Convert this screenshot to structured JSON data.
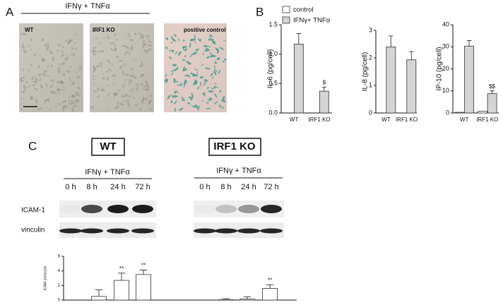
{
  "figure": {
    "panel_labels": [
      "A",
      "B",
      "C"
    ],
    "panel_a": {
      "treatment": "IFNγ + TNFα",
      "images": [
        "WT",
        "IRF1 KO",
        "positive control"
      ]
    },
    "panel_c": {
      "genotypes": [
        "WT",
        "IRF1 KO"
      ],
      "treatment_labels": [
        "IFNγ + TNFα",
        "IFNγ + TNFα"
      ],
      "timepoints": [
        [
          "0 h",
          "8 h",
          "24 h",
          "72 h"
        ],
        [
          "0 h",
          "8 h",
          "24 h",
          "72 h"
        ]
      ],
      "blot_rows": [
        "ICAM-1",
        "vinculin"
      ]
    }
  },
  "chart_data": [
    {
      "type": "bar",
      "y_label": "IL-6  (pg/cell)",
      "categories": [
        "WT",
        "IRF1 KO"
      ],
      "series": [
        {
          "name": "control",
          "color": "#ffffff",
          "values": [
            0,
            0
          ]
        },
        {
          "name": "IFNγ+ TNFα",
          "color": "#d4d4d4",
          "values": [
            1.17,
            0.37
          ],
          "errors": [
            0.18,
            0.07
          ],
          "annotations": [
            null,
            "$"
          ]
        }
      ],
      "ylim": [
        0,
        1.5
      ],
      "yticks": [
        {
          "value": 0,
          "label": "0.0"
        },
        {
          "value": 0.5,
          "label": "0.5"
        },
        {
          "value": 1,
          "label": "1.0"
        },
        {
          "value": 1.5,
          "label": "1.5"
        }
      ],
      "legend": "top"
    },
    {
      "type": "bar",
      "y_label": "IL-8  (pg/cell)",
      "categories": [
        "WT",
        "IRF1 KO"
      ],
      "series": [
        {
          "color": "#ffffff",
          "values": [
            0,
            0
          ]
        },
        {
          "color": "#d4d4d4",
          "values": [
            2.4,
            1.93
          ],
          "errors": [
            0.4,
            0.3
          ]
        }
      ],
      "ylim": [
        0,
        3
      ],
      "yticks": [
        0,
        1,
        2,
        3
      ]
    },
    {
      "type": "bar",
      "y_label": "IP-10  (pg/cell)",
      "categories": [
        "WT",
        "IRF1 KO"
      ],
      "series": [
        {
          "color": "#ffffff",
          "values": [
            0.3,
            0.8
          ]
        },
        {
          "color": "#d4d4d4",
          "values": [
            30.3,
            8.8
          ],
          "errors": [
            2.5,
            1.2
          ],
          "annotations": [
            null,
            "$$"
          ]
        }
      ],
      "ylim": [
        0,
        40
      ],
      "yticks": [
        0,
        10,
        20,
        30,
        40
      ]
    },
    {
      "type": "bar",
      "y_label": "ICAM-1/vinculin",
      "series": [
        {
          "color": "#ffffff",
          "values": [
            0,
            0.5,
            2.7,
            3.5,
            0,
            0.05,
            0.15,
            1.6
          ],
          "errors": [
            null,
            0.9,
            1.0,
            0.6,
            null,
            0.15,
            0.3,
            0.5
          ],
          "annotations": [
            null,
            null,
            "**",
            "**",
            null,
            null,
            null,
            "**"
          ]
        }
      ],
      "ylim": [
        0,
        6
      ],
      "yticks": [
        0,
        2,
        4,
        6
      ]
    }
  ]
}
